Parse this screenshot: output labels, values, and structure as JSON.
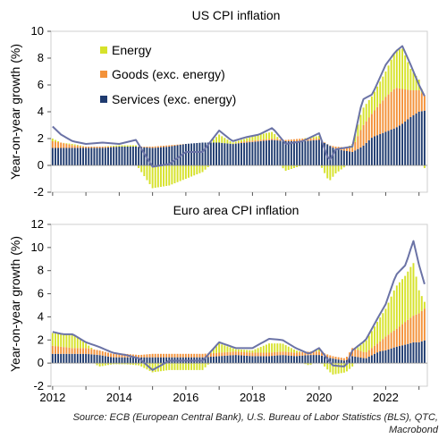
{
  "source_lines": [
    "Source: ECB (European Central Bank), U.S. Bureau of Labor Statistics (BLS), QTC,",
    "Macrobond"
  ],
  "x_tick_labels": [
    "2012",
    "2014",
    "2016",
    "2018",
    "2020",
    "2022"
  ],
  "legend": [
    {
      "label": "Energy",
      "color": "#d6e22b"
    },
    {
      "label": "Goods (exc. energy)",
      "color": "#f3923a"
    },
    {
      "label": "Services (exc. energy)",
      "color": "#1f3b6f"
    }
  ],
  "colors": {
    "energy": "#d6e22b",
    "goods": "#f3923a",
    "services": "#1f3b6f",
    "total_line": "#6b73a6"
  },
  "chart_data": [
    {
      "type": "bar",
      "title": "US CPI inflation",
      "ylabel": "Year-on-year growth (%)",
      "ylim": [
        -2,
        10
      ],
      "y_ticks": [
        -2,
        0,
        2,
        4,
        6,
        8,
        10
      ],
      "x_range": [
        2011.95,
        2023.25
      ],
      "stacked": true,
      "legend_position": "upper-left",
      "anchors": {
        "x": [
          2012.0,
          2012.25,
          2012.6,
          2013.0,
          2013.5,
          2014.0,
          2014.5,
          2015.0,
          2015.5,
          2016.0,
          2016.5,
          2017.0,
          2017.4,
          2017.8,
          2018.2,
          2018.6,
          2019.0,
          2019.5,
          2020.0,
          2020.3,
          2020.5,
          2021.0,
          2021.3,
          2021.6,
          2022.0,
          2022.3,
          2022.5,
          2022.75,
          2023.0,
          2023.2
        ],
        "energy": [
          0.2,
          0.0,
          0.1,
          0.0,
          0.0,
          0.1,
          0.1,
          -1.7,
          -1.5,
          -1.0,
          -0.5,
          0.6,
          0.1,
          0.2,
          0.4,
          0.5,
          -0.4,
          0.0,
          0.2,
          -1.2,
          -0.6,
          0.3,
          1.3,
          1.3,
          1.9,
          2.8,
          3.0,
          1.6,
          0.8,
          -0.4
        ],
        "goods": [
          0.5,
          0.4,
          0.2,
          0.1,
          0.1,
          0.0,
          0.0,
          0.1,
          0.1,
          0.0,
          0.0,
          0.0,
          0.0,
          0.1,
          0.1,
          0.1,
          0.1,
          0.2,
          0.1,
          0.0,
          0.2,
          0.3,
          1.5,
          1.8,
          2.6,
          3.0,
          2.6,
          2.0,
          1.6,
          1.0
        ],
        "services": [
          1.3,
          1.3,
          1.3,
          1.3,
          1.3,
          1.4,
          1.4,
          1.3,
          1.4,
          1.6,
          1.7,
          1.7,
          1.6,
          1.7,
          1.8,
          1.9,
          1.8,
          1.8,
          1.9,
          1.5,
          1.2,
          1.0,
          1.4,
          2.1,
          2.5,
          2.8,
          3.1,
          3.6,
          4.0,
          4.1
        ],
        "total": [
          2.9,
          2.3,
          1.8,
          1.6,
          1.7,
          1.6,
          1.9,
          -0.1,
          0.1,
          1.0,
          1.0,
          2.6,
          1.8,
          2.1,
          2.3,
          2.8,
          1.6,
          1.8,
          2.4,
          0.3,
          1.2,
          1.4,
          4.9,
          5.3,
          7.5,
          8.5,
          8.9,
          7.5,
          6.0,
          5.0
        ]
      }
    },
    {
      "type": "bar",
      "title": "Euro area CPI inflation",
      "ylabel": "Year-on-year growth (%)",
      "ylim": [
        -2,
        12
      ],
      "y_ticks": [
        -2,
        0,
        2,
        4,
        6,
        8,
        10,
        12
      ],
      "x_range": [
        2011.95,
        2023.25
      ],
      "stacked": true,
      "anchors": {
        "x": [
          2012.0,
          2012.3,
          2012.6,
          2013.0,
          2013.4,
          2013.8,
          2014.2,
          2014.6,
          2015.0,
          2015.5,
          2016.0,
          2016.5,
          2017.0,
          2017.5,
          2018.0,
          2018.5,
          2018.9,
          2019.3,
          2019.7,
          2020.0,
          2020.4,
          2020.8,
          2021.0,
          2021.4,
          2021.8,
          2022.0,
          2022.3,
          2022.6,
          2022.83,
          2023.0,
          2023.2
        ],
        "energy": [
          1.1,
          1.1,
          1.2,
          0.4,
          -0.3,
          -0.1,
          -0.1,
          -0.2,
          -0.8,
          -0.6,
          -0.6,
          -0.6,
          0.8,
          0.2,
          0.2,
          0.8,
          0.7,
          0.2,
          -0.2,
          0.2,
          -1.0,
          -0.8,
          -0.3,
          1.0,
          2.0,
          2.4,
          3.7,
          4.0,
          4.6,
          2.0,
          0.3
        ],
        "goods": [
          0.7,
          0.6,
          0.5,
          0.5,
          0.4,
          0.3,
          0.3,
          0.2,
          0.3,
          0.3,
          0.3,
          0.3,
          0.3,
          0.3,
          0.3,
          0.3,
          0.3,
          0.3,
          0.3,
          0.3,
          0.2,
          0.2,
          0.7,
          0.5,
          0.8,
          1.2,
          1.5,
          2.0,
          2.3,
          2.5,
          2.8
        ],
        "services": [
          0.8,
          0.8,
          0.8,
          0.8,
          0.7,
          0.5,
          0.5,
          0.5,
          0.5,
          0.5,
          0.5,
          0.5,
          0.6,
          0.7,
          0.6,
          0.6,
          0.7,
          0.6,
          0.7,
          0.7,
          0.4,
          0.2,
          0.6,
          0.4,
          1.0,
          1.1,
          1.4,
          1.6,
          1.8,
          1.8,
          2.0
        ],
        "total": [
          2.7,
          2.5,
          2.5,
          1.8,
          1.4,
          0.9,
          0.7,
          0.4,
          -0.6,
          0.2,
          0.2,
          0.2,
          1.8,
          1.3,
          1.3,
          2.1,
          2.0,
          1.3,
          0.8,
          1.3,
          -0.2,
          -0.3,
          1.1,
          2.0,
          4.1,
          5.1,
          7.6,
          8.5,
          10.6,
          8.5,
          6.5
        ]
      }
    }
  ]
}
